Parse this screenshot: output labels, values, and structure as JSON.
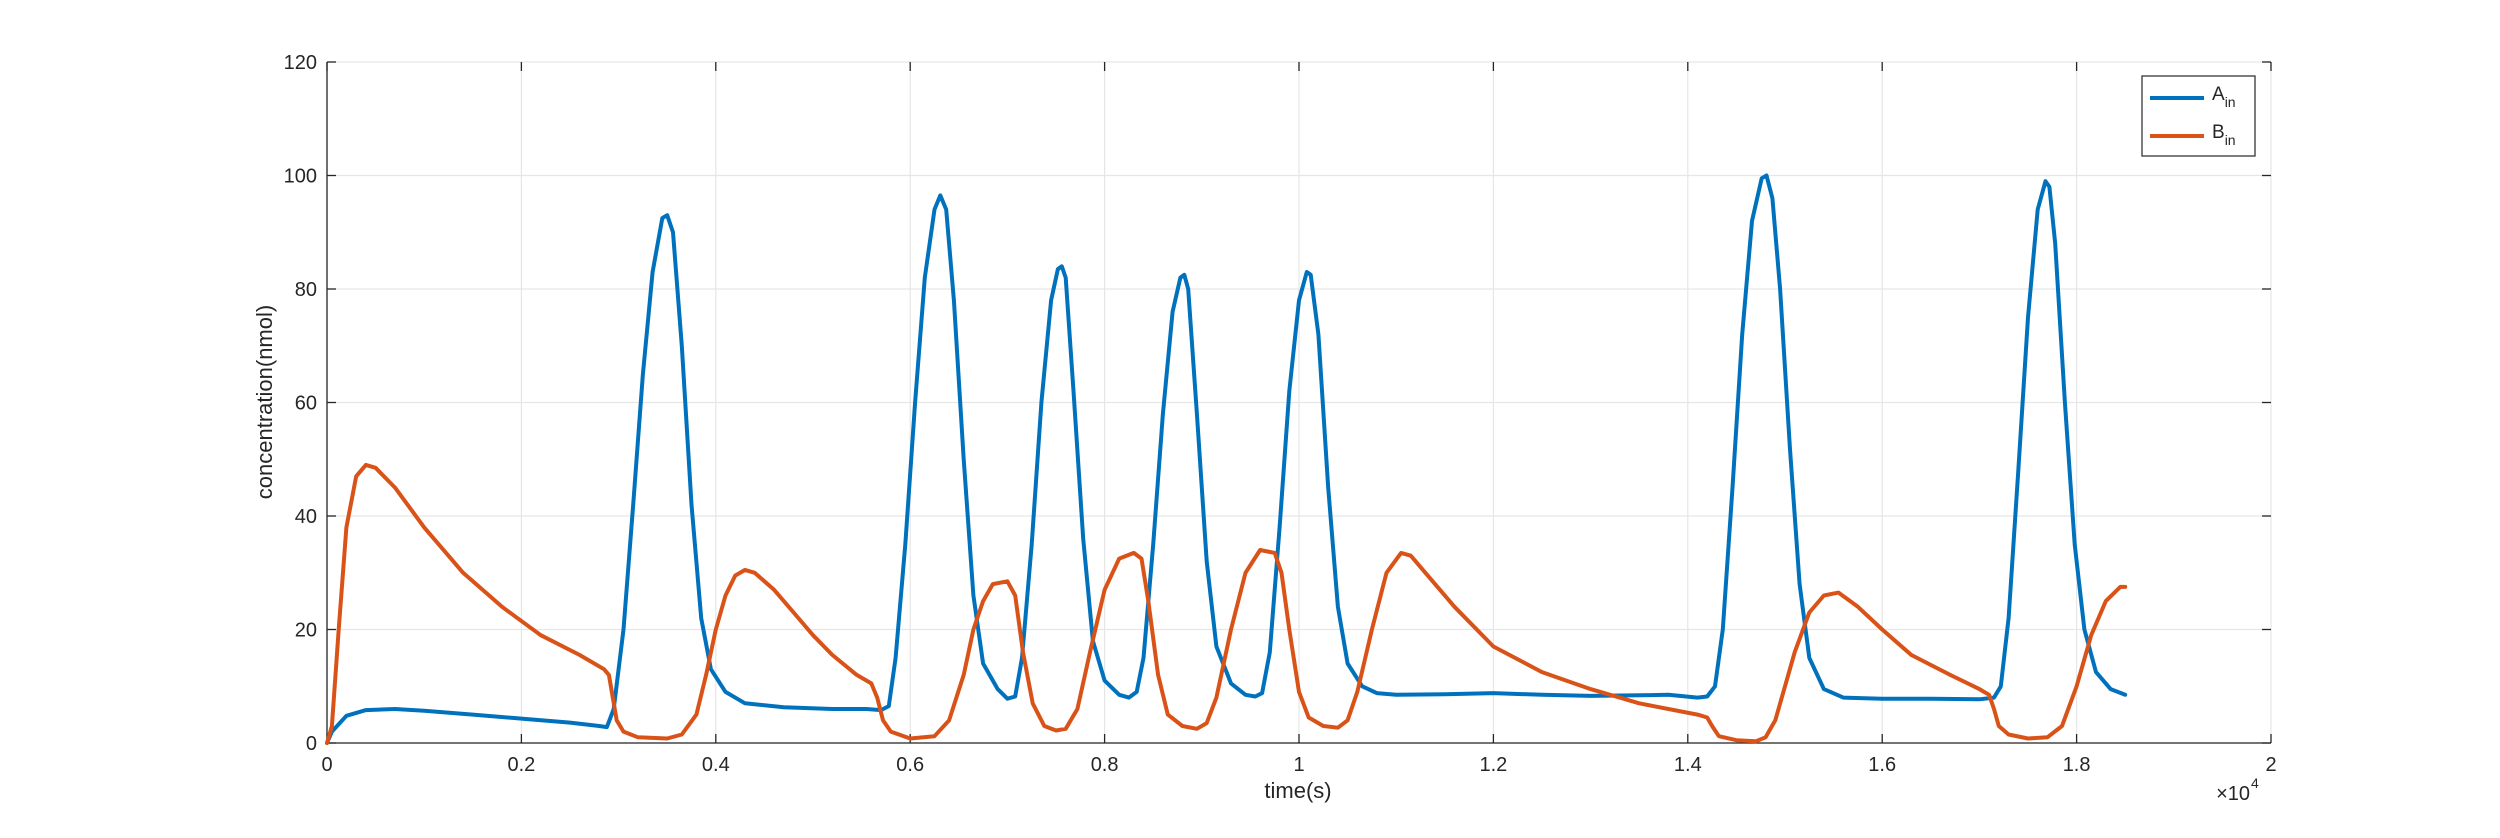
{
  "chart_data": {
    "type": "line",
    "title": "",
    "xlabel": "time(s)",
    "ylabel": "concentration(nmol)",
    "xlim": [
      0,
      2
    ],
    "ylim": [
      0,
      120
    ],
    "x_exponent_label": "×10",
    "x_exponent_power": "4",
    "xticks": [
      0,
      0.2,
      0.4,
      0.6,
      0.8,
      1,
      1.2,
      1.4,
      1.6,
      1.8,
      2
    ],
    "xtick_labels": [
      "0",
      "0.2",
      "0.4",
      "0.6",
      "0.8",
      "1",
      "1.2",
      "1.4",
      "1.6",
      "1.8",
      "2"
    ],
    "yticks": [
      0,
      20,
      40,
      60,
      80,
      100,
      120
    ],
    "ytick_labels": [
      "0",
      "20",
      "40",
      "60",
      "80",
      "100",
      "120"
    ],
    "grid": true,
    "legend_position": "top-right",
    "series": [
      {
        "name": "A",
        "subscript": "in",
        "color": "#0072BD",
        "points": [
          [
            0,
            0
          ],
          [
            0.005,
            2
          ],
          [
            0.02,
            4.8
          ],
          [
            0.04,
            5.8
          ],
          [
            0.07,
            6
          ],
          [
            0.1,
            5.7
          ],
          [
            0.15,
            5
          ],
          [
            0.2,
            4.3
          ],
          [
            0.25,
            3.6
          ],
          [
            0.28,
            3
          ],
          [
            0.288,
            2.8
          ],
          [
            0.295,
            6
          ],
          [
            0.305,
            20
          ],
          [
            0.315,
            42
          ],
          [
            0.325,
            65
          ],
          [
            0.335,
            83
          ],
          [
            0.345,
            92.5
          ],
          [
            0.35,
            93
          ],
          [
            0.356,
            90
          ],
          [
            0.365,
            70
          ],
          [
            0.375,
            42
          ],
          [
            0.385,
            22
          ],
          [
            0.395,
            13
          ],
          [
            0.41,
            9
          ],
          [
            0.43,
            7
          ],
          [
            0.47,
            6.3
          ],
          [
            0.52,
            6
          ],
          [
            0.555,
            6
          ],
          [
            0.57,
            5.8
          ],
          [
            0.578,
            6.5
          ],
          [
            0.585,
            15
          ],
          [
            0.595,
            35
          ],
          [
            0.605,
            60
          ],
          [
            0.615,
            82
          ],
          [
            0.625,
            94
          ],
          [
            0.631,
            96.5
          ],
          [
            0.637,
            94
          ],
          [
            0.645,
            78
          ],
          [
            0.655,
            50
          ],
          [
            0.665,
            26
          ],
          [
            0.675,
            14
          ],
          [
            0.69,
            9.5
          ],
          [
            0.7,
            7.8
          ],
          [
            0.708,
            8.2
          ],
          [
            0.715,
            15
          ],
          [
            0.725,
            35
          ],
          [
            0.735,
            60
          ],
          [
            0.745,
            78
          ],
          [
            0.752,
            83.5
          ],
          [
            0.756,
            84
          ],
          [
            0.76,
            82
          ],
          [
            0.768,
            62
          ],
          [
            0.778,
            36
          ],
          [
            0.788,
            18
          ],
          [
            0.8,
            11
          ],
          [
            0.815,
            8.5
          ],
          [
            0.825,
            8
          ],
          [
            0.833,
            9
          ],
          [
            0.84,
            15
          ],
          [
            0.85,
            35
          ],
          [
            0.86,
            58
          ],
          [
            0.87,
            76
          ],
          [
            0.878,
            82
          ],
          [
            0.882,
            82.5
          ],
          [
            0.886,
            80
          ],
          [
            0.895,
            58
          ],
          [
            0.905,
            32
          ],
          [
            0.915,
            17
          ],
          [
            0.93,
            10.5
          ],
          [
            0.945,
            8.5
          ],
          [
            0.955,
            8.2
          ],
          [
            0.962,
            8.8
          ],
          [
            0.97,
            16
          ],
          [
            0.98,
            38
          ],
          [
            0.99,
            62
          ],
          [
            1.0,
            78
          ],
          [
            1.008,
            83
          ],
          [
            1.012,
            82.5
          ],
          [
            1.02,
            72
          ],
          [
            1.03,
            45
          ],
          [
            1.04,
            24
          ],
          [
            1.05,
            14
          ],
          [
            1.065,
            10
          ],
          [
            1.08,
            8.8
          ],
          [
            1.1,
            8.5
          ],
          [
            1.15,
            8.6
          ],
          [
            1.2,
            8.8
          ],
          [
            1.25,
            8.5
          ],
          [
            1.3,
            8.3
          ],
          [
            1.35,
            8.4
          ],
          [
            1.38,
            8.5
          ],
          [
            1.41,
            8
          ],
          [
            1.42,
            8.2
          ],
          [
            1.428,
            10
          ],
          [
            1.436,
            20
          ],
          [
            1.446,
            45
          ],
          [
            1.456,
            72
          ],
          [
            1.466,
            92
          ],
          [
            1.476,
            99.5
          ],
          [
            1.481,
            100
          ],
          [
            1.487,
            96
          ],
          [
            1.495,
            80
          ],
          [
            1.505,
            52
          ],
          [
            1.515,
            28
          ],
          [
            1.525,
            15
          ],
          [
            1.54,
            9.5
          ],
          [
            1.56,
            8
          ],
          [
            1.6,
            7.8
          ],
          [
            1.65,
            7.8
          ],
          [
            1.7,
            7.7
          ],
          [
            1.715,
            8
          ],
          [
            1.722,
            10
          ],
          [
            1.73,
            22
          ],
          [
            1.74,
            48
          ],
          [
            1.75,
            75
          ],
          [
            1.76,
            94
          ],
          [
            1.768,
            99
          ],
          [
            1.772,
            98
          ],
          [
            1.778,
            88
          ],
          [
            1.788,
            60
          ],
          [
            1.798,
            35
          ],
          [
            1.808,
            20
          ],
          [
            1.82,
            12.5
          ],
          [
            1.835,
            9.5
          ],
          [
            1.85,
            8.5
          ]
        ]
      },
      {
        "name": "B",
        "subscript": "in",
        "color": "#D95319",
        "points": [
          [
            0,
            0
          ],
          [
            0.005,
            3
          ],
          [
            0.012,
            20
          ],
          [
            0.02,
            38
          ],
          [
            0.03,
            47
          ],
          [
            0.04,
            49
          ],
          [
            0.05,
            48.5
          ],
          [
            0.07,
            45
          ],
          [
            0.1,
            38
          ],
          [
            0.14,
            30
          ],
          [
            0.18,
            24
          ],
          [
            0.22,
            19
          ],
          [
            0.26,
            15.5
          ],
          [
            0.285,
            13
          ],
          [
            0.29,
            12
          ],
          [
            0.294,
            8
          ],
          [
            0.298,
            4
          ],
          [
            0.305,
            2
          ],
          [
            0.32,
            1
          ],
          [
            0.35,
            0.8
          ],
          [
            0.365,
            1.5
          ],
          [
            0.38,
            5
          ],
          [
            0.39,
            12
          ],
          [
            0.4,
            20
          ],
          [
            0.41,
            26
          ],
          [
            0.42,
            29.5
          ],
          [
            0.43,
            30.5
          ],
          [
            0.44,
            30
          ],
          [
            0.46,
            27
          ],
          [
            0.48,
            23
          ],
          [
            0.5,
            19
          ],
          [
            0.52,
            15.5
          ],
          [
            0.545,
            12
          ],
          [
            0.56,
            10.5
          ],
          [
            0.566,
            8
          ],
          [
            0.572,
            4
          ],
          [
            0.58,
            2
          ],
          [
            0.6,
            0.8
          ],
          [
            0.625,
            1.2
          ],
          [
            0.64,
            4
          ],
          [
            0.655,
            12
          ],
          [
            0.665,
            20
          ],
          [
            0.675,
            25
          ],
          [
            0.685,
            28
          ],
          [
            0.7,
            28.5
          ],
          [
            0.708,
            26
          ],
          [
            0.716,
            16
          ],
          [
            0.726,
            7
          ],
          [
            0.738,
            3
          ],
          [
            0.75,
            2.2
          ],
          [
            0.76,
            2.5
          ],
          [
            0.772,
            6
          ],
          [
            0.785,
            16
          ],
          [
            0.8,
            27
          ],
          [
            0.815,
            32.5
          ],
          [
            0.83,
            33.5
          ],
          [
            0.838,
            32.5
          ],
          [
            0.845,
            25
          ],
          [
            0.855,
            12
          ],
          [
            0.865,
            5
          ],
          [
            0.88,
            3
          ],
          [
            0.895,
            2.5
          ],
          [
            0.905,
            3.5
          ],
          [
            0.915,
            8
          ],
          [
            0.93,
            20
          ],
          [
            0.945,
            30
          ],
          [
            0.96,
            34
          ],
          [
            0.975,
            33.5
          ],
          [
            0.982,
            30
          ],
          [
            0.99,
            20
          ],
          [
            1.0,
            9
          ],
          [
            1.01,
            4.5
          ],
          [
            1.025,
            3
          ],
          [
            1.04,
            2.7
          ],
          [
            1.05,
            4
          ],
          [
            1.06,
            9
          ],
          [
            1.075,
            20
          ],
          [
            1.09,
            30
          ],
          [
            1.105,
            33.5
          ],
          [
            1.115,
            33
          ],
          [
            1.13,
            30
          ],
          [
            1.16,
            24
          ],
          [
            1.2,
            17
          ],
          [
            1.25,
            12.5
          ],
          [
            1.3,
            9.5
          ],
          [
            1.35,
            7
          ],
          [
            1.38,
            6
          ],
          [
            1.41,
            5
          ],
          [
            1.42,
            4.5
          ],
          [
            1.425,
            3
          ],
          [
            1.432,
            1.2
          ],
          [
            1.45,
            0.5
          ],
          [
            1.47,
            0.3
          ],
          [
            1.48,
            1
          ],
          [
            1.49,
            4
          ],
          [
            1.5,
            10
          ],
          [
            1.51,
            16
          ],
          [
            1.525,
            23
          ],
          [
            1.54,
            26
          ],
          [
            1.555,
            26.5
          ],
          [
            1.575,
            24
          ],
          [
            1.6,
            20
          ],
          [
            1.63,
            15.5
          ],
          [
            1.67,
            12
          ],
          [
            1.7,
            9.5
          ],
          [
            1.71,
            8.5
          ],
          [
            1.715,
            6
          ],
          [
            1.72,
            3
          ],
          [
            1.73,
            1.5
          ],
          [
            1.75,
            0.8
          ],
          [
            1.77,
            1
          ],
          [
            1.785,
            3
          ],
          [
            1.8,
            10
          ],
          [
            1.815,
            19
          ],
          [
            1.83,
            25
          ],
          [
            1.845,
            27.5
          ],
          [
            1.85,
            27.5
          ]
        ]
      }
    ]
  }
}
